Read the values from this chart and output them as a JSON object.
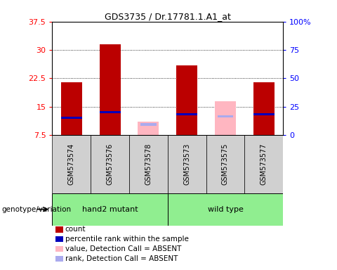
{
  "title": "GDS3735 / Dr.17781.1.A1_at",
  "samples": [
    "GSM573574",
    "GSM573576",
    "GSM573578",
    "GSM573573",
    "GSM573575",
    "GSM573577"
  ],
  "red_bars": [
    21.5,
    31.5,
    null,
    26.0,
    null,
    21.5
  ],
  "blue_markers": [
    12.0,
    13.5,
    null,
    13.0,
    null,
    13.0
  ],
  "pink_bars": [
    null,
    null,
    11.0,
    null,
    16.5,
    null
  ],
  "lightblue_markers": [
    null,
    null,
    10.3,
    null,
    12.5,
    null
  ],
  "ylim_left": [
    7.5,
    37.5
  ],
  "ylim_right": [
    0,
    100
  ],
  "yticks_left": [
    7.5,
    15.0,
    22.5,
    30.0,
    37.5
  ],
  "ytick_labels_left": [
    "7.5",
    "15",
    "22.5",
    "30",
    "37.5"
  ],
  "yticks_right": [
    0,
    25,
    50,
    75,
    100
  ],
  "ytick_labels_right": [
    "0",
    "25",
    "50",
    "75",
    "100%"
  ],
  "bar_width": 0.55,
  "red_color": "#bb0000",
  "pink_color": "#ffb6c1",
  "blue_color": "#0000bb",
  "lightblue_color": "#aaaaee",
  "group1_name": "hand2 mutant",
  "group2_name": "wild type",
  "group_color": "#90EE90",
  "genotype_label": "genotype/variation",
  "legend_items": [
    {
      "label": "count",
      "color": "#bb0000"
    },
    {
      "label": "percentile rank within the sample",
      "color": "#0000bb"
    },
    {
      "label": "value, Detection Call = ABSENT",
      "color": "#ffb6c1"
    },
    {
      "label": "rank, Detection Call = ABSENT",
      "color": "#aaaaee"
    }
  ]
}
